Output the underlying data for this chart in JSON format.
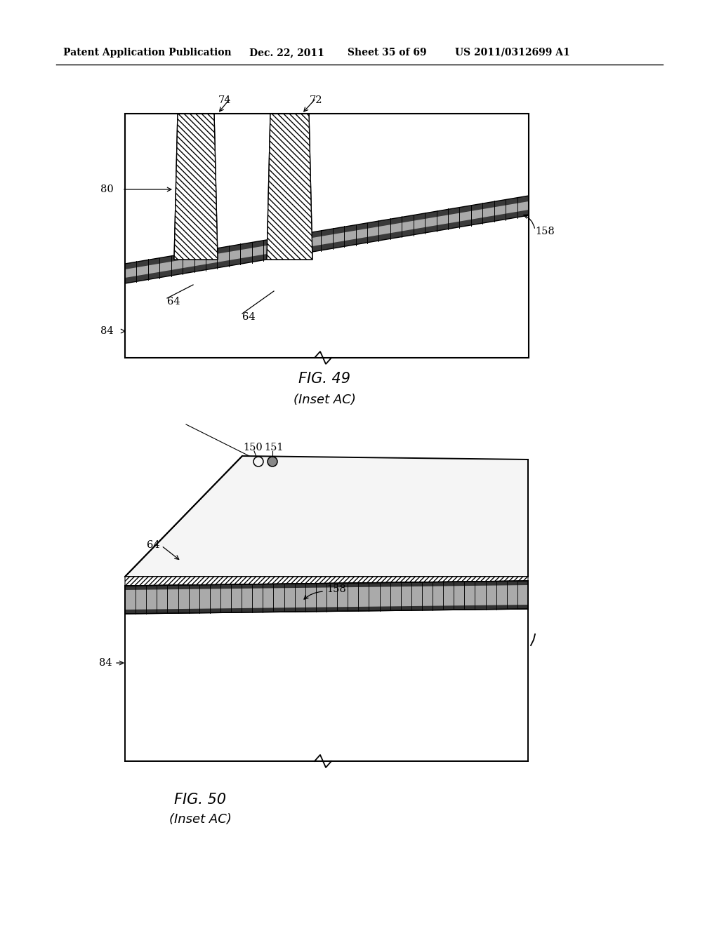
{
  "bg_color": "#ffffff",
  "header_text": "Patent Application Publication",
  "header_date": "Dec. 22, 2011",
  "header_sheet": "Sheet 35 of 69",
  "header_patent": "US 2011/0312699 A1",
  "fig49_title": "FIG. 49",
  "fig49_subtitle": "(Inset AC)",
  "fig50_title": "FIG. 50",
  "fig50_subtitle": "(Inset AC)"
}
